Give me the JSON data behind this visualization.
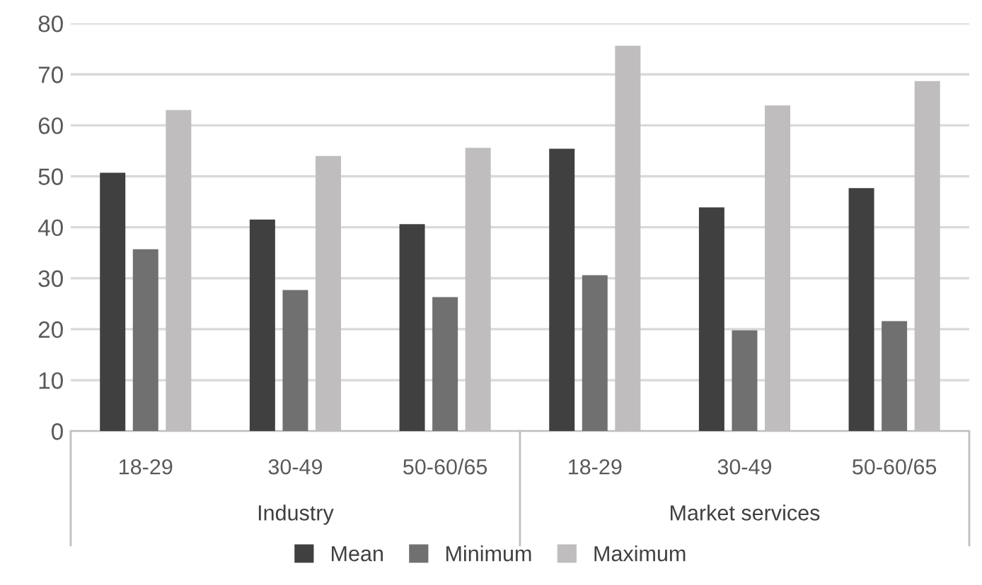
{
  "chart_data": {
    "type": "bar",
    "categories": [
      "18-29",
      "30-49",
      "50-60/65",
      "18-29",
      "30-49",
      "50-60/65"
    ],
    "series": [
      {
        "name": "Mean",
        "color": "#404040",
        "values": [
          50.7,
          41.5,
          40.6,
          55.4,
          43.9,
          47.7
        ]
      },
      {
        "name": "Minimum",
        "color": "#707070",
        "values": [
          35.7,
          27.7,
          26.3,
          30.6,
          19.8,
          21.6
        ]
      },
      {
        "name": "Maximum",
        "color": "#bfbdbd",
        "values": [
          63.0,
          54.0,
          55.6,
          75.6,
          63.9,
          68.7
        ]
      }
    ],
    "annotations": [
      "Industry",
      "Market services"
    ],
    "ylim": [
      0,
      80
    ],
    "yticks": [
      0,
      10,
      20,
      30,
      40,
      50,
      60,
      70,
      80
    ],
    "grid": "y",
    "legend": "bottom"
  }
}
